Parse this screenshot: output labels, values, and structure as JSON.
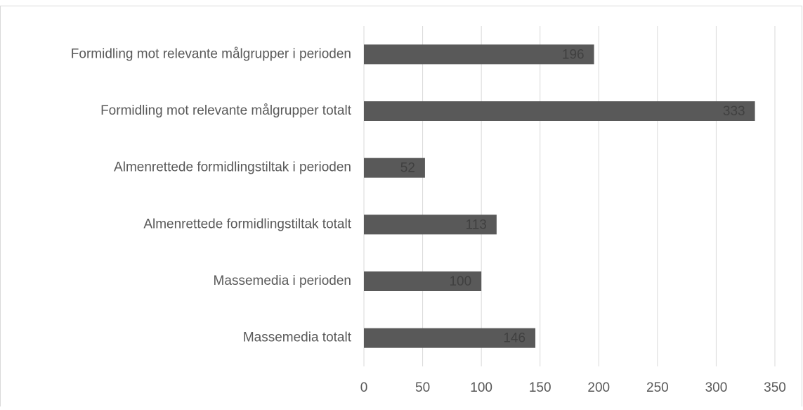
{
  "chart_data": {
    "type": "bar",
    "orientation": "horizontal",
    "categories": [
      "Formidling mot relevante målgrupper i perioden",
      "Formidling mot relevante målgrupper totalt",
      "Almenrettede formidlingstiltak i perioden",
      "Almenrettede formidlingstiltak totalt",
      "Massemedia i perioden",
      "Massemedia totalt"
    ],
    "values": [
      196,
      333,
      52,
      113,
      100,
      146
    ],
    "color": "#595959",
    "xlim": [
      0,
      350
    ],
    "xticks": [
      0,
      50,
      100,
      150,
      200,
      250,
      300,
      350
    ],
    "grid": true
  }
}
